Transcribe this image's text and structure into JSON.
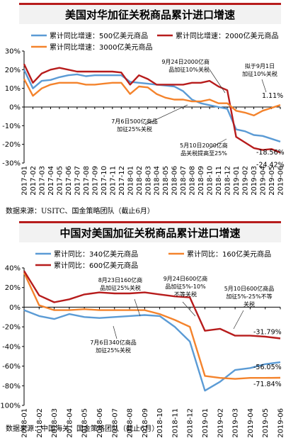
{
  "chart_data": [
    {
      "type": "line",
      "title": "美国对华加征关税商品累计进口增速",
      "source": "数据来源：USITC、国金策略团队（截止6月）",
      "categories": [
        "2017-01",
        "2017-02",
        "2017-03",
        "2017-04",
        "2017-05",
        "2017-06",
        "2017-07",
        "2017-08",
        "2017-09",
        "2017-10",
        "2017-11",
        "2017-12",
        "2018-01",
        "2018-02",
        "2018-03",
        "2018-04",
        "2018-05",
        "2018-06",
        "2018-07",
        "2018-08",
        "2018-09",
        "2018-10",
        "2018-11",
        "2018-12",
        "2019-01",
        "2019-02",
        "2019-03",
        "2019-04",
        "2019-05",
        "2019-06"
      ],
      "ylim": [
        -30,
        30
      ],
      "yticks": [
        -30,
        -20,
        -10,
        0,
        10,
        20,
        30
      ],
      "ytick_labels": [
        "-30%",
        "-20%",
        "-10%",
        "0%",
        "10%",
        "20%",
        "30%"
      ],
      "grid": false,
      "legend_position": "top",
      "series": [
        {
          "name": "累计同比增速：500亿美元商品",
          "color": "#5b9bd5",
          "values": [
            20,
            10,
            14,
            14.5,
            16,
            17,
            17.5,
            16.5,
            17,
            17,
            17,
            17,
            13.5,
            13,
            12.5,
            12,
            11.5,
            11,
            8.5,
            4,
            2,
            1,
            0,
            -1,
            -12,
            -13,
            -15,
            -15.5,
            -17,
            -18.56
          ]
        },
        {
          "name": "累计同比增速：2000亿美元商品",
          "color": "#b71c1c",
          "values": [
            23,
            13,
            18,
            20,
            21,
            20,
            19,
            19,
            19,
            19,
            19,
            18.5,
            12,
            17,
            15,
            12,
            12,
            12,
            12,
            13,
            13,
            14,
            11,
            9,
            -16,
            -19,
            -22,
            -23,
            -22.5,
            -24.42
          ]
        },
        {
          "name": "累计同比增速：3000亿美元商品",
          "color": "#f4832c",
          "values": [
            15,
            6,
            10,
            12,
            13,
            13,
            13,
            12,
            12,
            12.5,
            13,
            13,
            7,
            11,
            10.5,
            7,
            5,
            4,
            4,
            3,
            3,
            4,
            2,
            2,
            -2,
            -3,
            -4.5,
            -2,
            -0.5,
            1.11
          ]
        }
      ],
      "end_labels": [
        "1.11%",
        "-18.56%",
        "-24.42%"
      ],
      "annotations": [
        {
          "lines": [
            "9月24日2000亿商",
            "品加征10%关税"
          ]
        },
        {
          "lines": [
            "拟于9月1日",
            "加征10%关税"
          ]
        },
        {
          "lines": [
            "7月6日500亿商品",
            "加征25%关税"
          ]
        },
        {
          "lines": [
            "5月10日2000亿商",
            "品关税提高至25%"
          ]
        }
      ]
    },
    {
      "type": "line",
      "title": "中国对美国加征关税商品累计进口增速",
      "source": "数据来源：中国海关、国金策略团队（截止6月）",
      "categories": [
        "2018-01",
        "2018-02",
        "2018-03",
        "2018-04",
        "2018-05",
        "2018-06",
        "2018-07",
        "2018-08",
        "2018-09",
        "2018-10",
        "2018-11",
        "2018-12",
        "2019-01",
        "2019-02",
        "2019-03",
        "2019-04",
        "2019-05",
        "2019-06"
      ],
      "ylim": [
        -100,
        40
      ],
      "yticks": [
        -100,
        -80,
        -60,
        -40,
        -20,
        0,
        20,
        40
      ],
      "ytick_labels": [
        "-100%",
        "-80%",
        "-60%",
        "-40%",
        "-20%",
        "0%",
        "20%",
        "40%"
      ],
      "grid": false,
      "legend_position": "top",
      "series": [
        {
          "name": "累计同比：340亿美元商品",
          "color": "#5b9bd5",
          "values": [
            -3,
            -9,
            -12,
            -7,
            -10,
            -11,
            -10,
            -9,
            -8,
            -9,
            -20,
            -35,
            -85,
            -76,
            -64,
            -62,
            -58,
            -56.05
          ]
        },
        {
          "name": "累计同比：160亿美元商品",
          "color": "#f4832c",
          "values": [
            35,
            2,
            -3,
            -3,
            -2,
            -3,
            -3,
            -3,
            -3,
            -7,
            -13,
            -20,
            -70,
            -72,
            -73,
            -72,
            -72,
            -71.84
          ]
        },
        {
          "name": "累计同比：600亿美元商品",
          "color": "#b71c1c",
          "values": [
            37,
            12,
            5,
            8,
            13,
            15,
            14,
            14,
            15,
            13,
            11,
            10,
            -24,
            -22,
            -29,
            -29,
            -30,
            -31.79
          ]
        }
      ],
      "end_labels": [
        "-31.79%",
        "-56.05%",
        "-71.84%"
      ],
      "annotations": [
        {
          "lines": [
            "8月23日160亿商",
            "品加征25%关税"
          ]
        },
        {
          "lines": [
            "9月24日600亿商",
            "品加征5%-10%",
            "不等关税"
          ]
        },
        {
          "lines": [
            "5月10日600亿商品",
            "加征5%-25%不等",
            "关税"
          ]
        },
        {
          "lines": [
            "7月6日340亿商品",
            "加征25%关税"
          ]
        }
      ]
    }
  ]
}
